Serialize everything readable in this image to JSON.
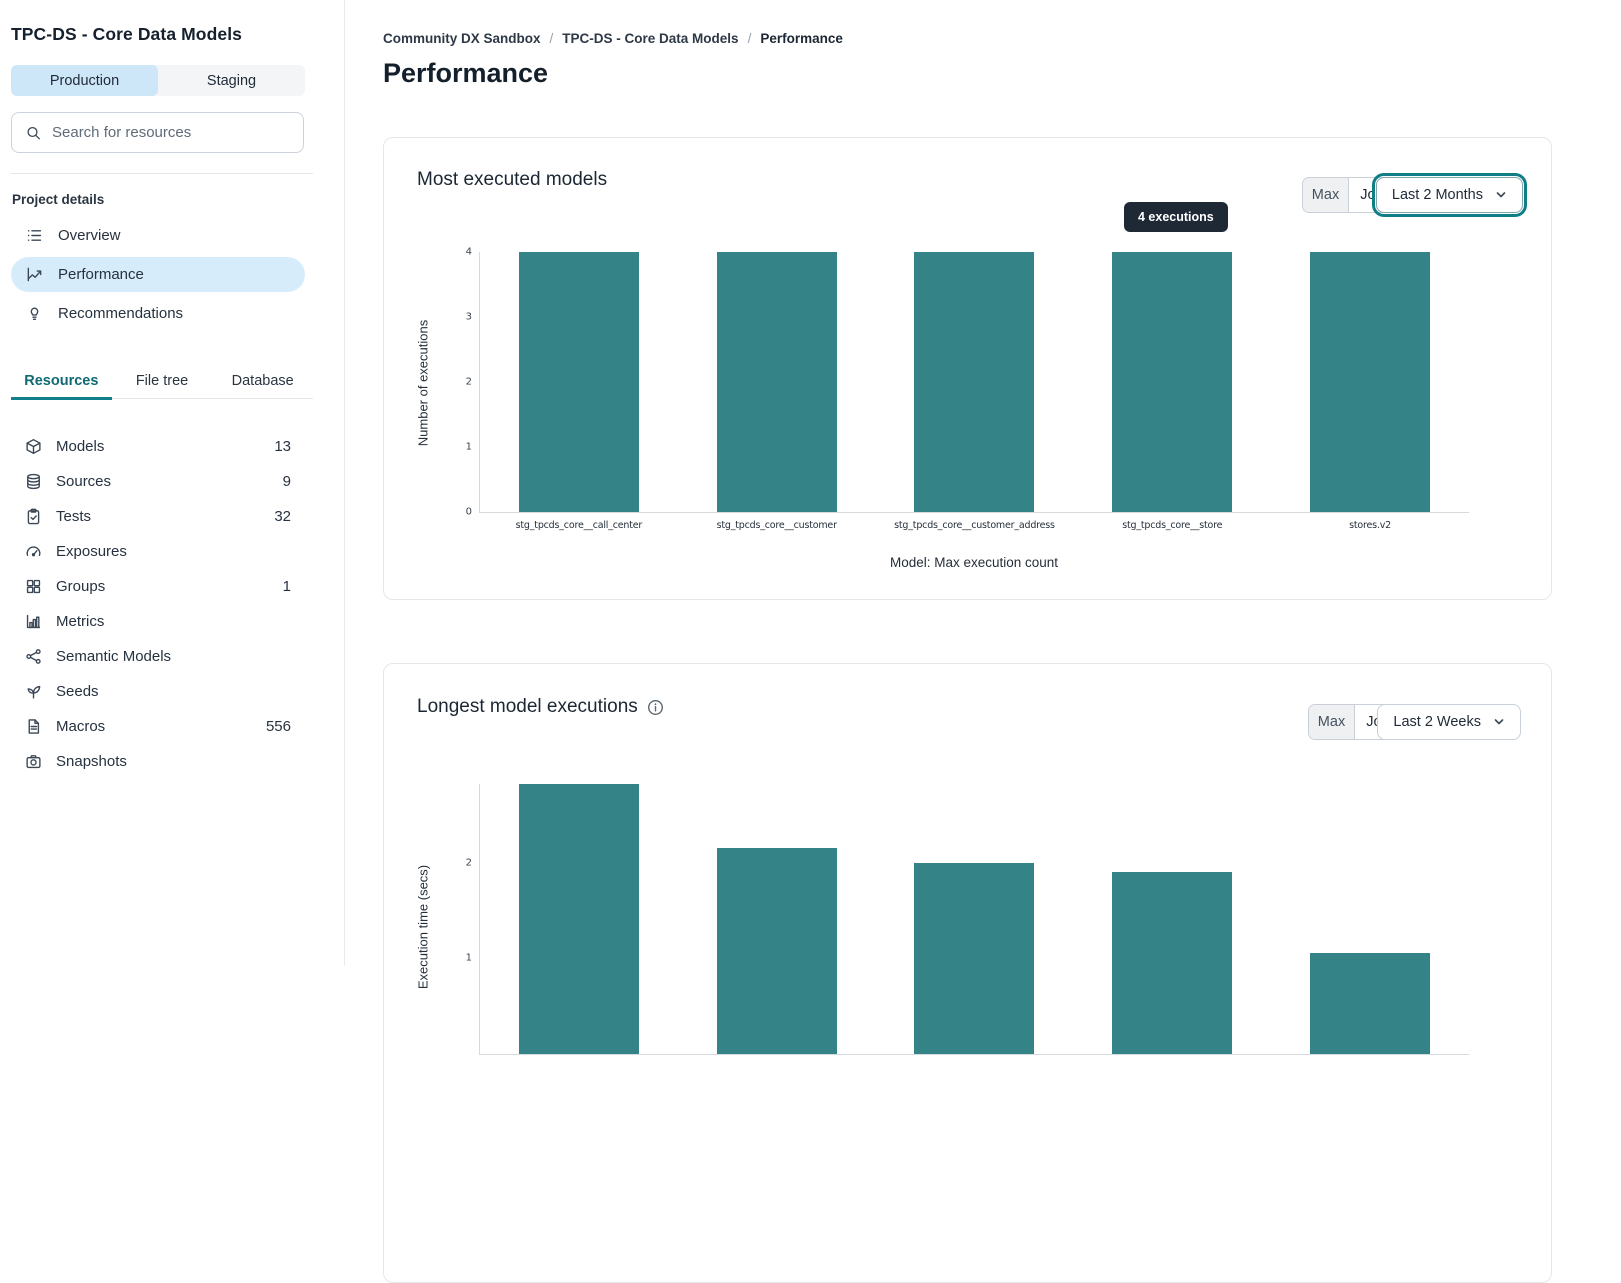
{
  "sidebar": {
    "title": "TPC-DS - Core Data Models",
    "env_tabs": {
      "production": "Production",
      "staging": "Staging",
      "selected": "Production"
    },
    "search": {
      "placeholder": "Search for resources"
    },
    "project_details": {
      "label": "Project details",
      "items": [
        {
          "label": "Overview",
          "icon": "list-icon",
          "active": false
        },
        {
          "label": "Performance",
          "icon": "line-chart-icon",
          "active": true
        },
        {
          "label": "Recommendations",
          "icon": "lightbulb-icon",
          "active": false
        }
      ]
    },
    "resource_tabs": [
      {
        "label": "Resources",
        "active": true
      },
      {
        "label": "File tree",
        "active": false
      },
      {
        "label": "Database",
        "active": false
      }
    ],
    "resources": [
      {
        "label": "Models",
        "count": "13",
        "icon": "cube-icon"
      },
      {
        "label": "Sources",
        "count": "9",
        "icon": "database-icon"
      },
      {
        "label": "Tests",
        "count": "32",
        "icon": "clipboard-check-icon"
      },
      {
        "label": "Exposures",
        "count": "",
        "icon": "gauge-icon"
      },
      {
        "label": "Groups",
        "count": "1",
        "icon": "grid-icon"
      },
      {
        "label": "Metrics",
        "count": "",
        "icon": "bar-chart-icon"
      },
      {
        "label": "Semantic Models",
        "count": "",
        "icon": "nodes-icon"
      },
      {
        "label": "Seeds",
        "count": "",
        "icon": "seedling-icon"
      },
      {
        "label": "Macros",
        "count": "556",
        "icon": "file-icon"
      },
      {
        "label": "Snapshots",
        "count": "",
        "icon": "camera-icon"
      }
    ]
  },
  "main": {
    "breadcrumb": {
      "items": [
        "Community DX Sandbox",
        "TPC-DS - Core Data Models",
        "Performance"
      ],
      "separator": "/"
    },
    "page_title": "Performance",
    "cards": [
      {
        "title": "Most executed models",
        "view_toggle": {
          "options": [
            "Max",
            "Job"
          ],
          "selected": "Max"
        },
        "range_select": {
          "value": "Last 2 Months",
          "focused": true
        },
        "tooltip": "4 executions"
      },
      {
        "title": "Longest model executions",
        "has_info_icon": true,
        "view_toggle": {
          "options": [
            "Max",
            "Job"
          ],
          "selected": "Max"
        },
        "range_select": {
          "value": "Last 2 Weeks",
          "focused": false
        }
      }
    ]
  },
  "colors": {
    "bar_teal": "#338387",
    "selected_blue": "#d7ecfb",
    "active_tab_teal": "#12808b",
    "tooltip_bg": "#1f2936",
    "focus_ring_teal": "#0f7e87"
  },
  "chart_data": [
    {
      "type": "bar",
      "title": "Most executed models",
      "categories": [
        "stg_tpcds_core__call_center",
        "stg_tpcds_core__customer",
        "stg_tpcds_core__customer_address",
        "stg_tpcds_core__store",
        "stores.v2"
      ],
      "values": [
        4,
        4,
        4,
        4,
        4
      ],
      "xlabel": "Model: Max execution count",
      "ylabel": "Number of executions",
      "ylim": [
        0,
        4
      ],
      "yticks": [
        0,
        1,
        2,
        3,
        4
      ],
      "grid": false,
      "bar_color": "#338387",
      "tooltip": {
        "text": "4 executions",
        "bar_index": 3
      }
    },
    {
      "type": "bar",
      "title": "Longest model executions",
      "values": [
        2.82,
        2.15,
        2.0,
        1.9,
        1.05
      ],
      "ylabel": "Execution time (secs)",
      "ylim": [
        0,
        2.82
      ],
      "yticks": [
        1,
        2
      ],
      "grid": false,
      "bar_color": "#338387",
      "clipped_at_viewport_bottom": true
    }
  ]
}
